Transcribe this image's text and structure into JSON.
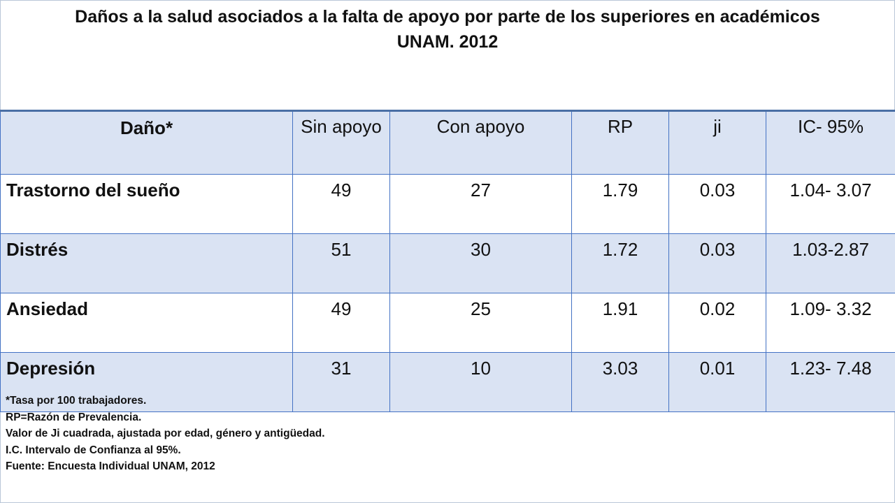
{
  "title": {
    "line1": "Daños a la salud asociados a la falta de apoyo por parte de los superiores en académicos",
    "line2": "UNAM. 2012"
  },
  "table": {
    "headers": [
      "Daño*",
      "Sin apoyo",
      "Con apoyo",
      "RP",
      "ji",
      "IC- 95%"
    ],
    "rows": [
      {
        "dano": "Trastorno del sueño",
        "sin_apoyo": "49",
        "con_apoyo": "27",
        "rp": "1.79",
        "ji": "0.03",
        "ic": "1.04- 3.07"
      },
      {
        "dano": "Distrés",
        "sin_apoyo": "51",
        "con_apoyo": "30",
        "rp": "1.72",
        "ji": "0.03",
        "ic": "1.03-2.87"
      },
      {
        "dano": "Ansiedad",
        "sin_apoyo": "49",
        "con_apoyo": "25",
        "rp": "1.91",
        "ji": "0.02",
        "ic": "1.09- 3.32"
      },
      {
        "dano": "Depresión",
        "sin_apoyo": "31",
        "con_apoyo": "10",
        "rp": "3.03",
        "ji": "0.01",
        "ic": "1.23- 7.48"
      }
    ]
  },
  "notes": [
    "*Tasa por 100 trabajadores.",
    "RP=Razón de Prevalencia.",
    "Valor de Ji cuadrada, ajustada por edad, género y antigüedad.",
    "I.C. Intervalo de Confianza al 95%.",
    "Fuente: Encuesta Individual UNAM, 2012"
  ],
  "colors": {
    "header_fill": "#dae3f3",
    "border": "#4472c4"
  }
}
